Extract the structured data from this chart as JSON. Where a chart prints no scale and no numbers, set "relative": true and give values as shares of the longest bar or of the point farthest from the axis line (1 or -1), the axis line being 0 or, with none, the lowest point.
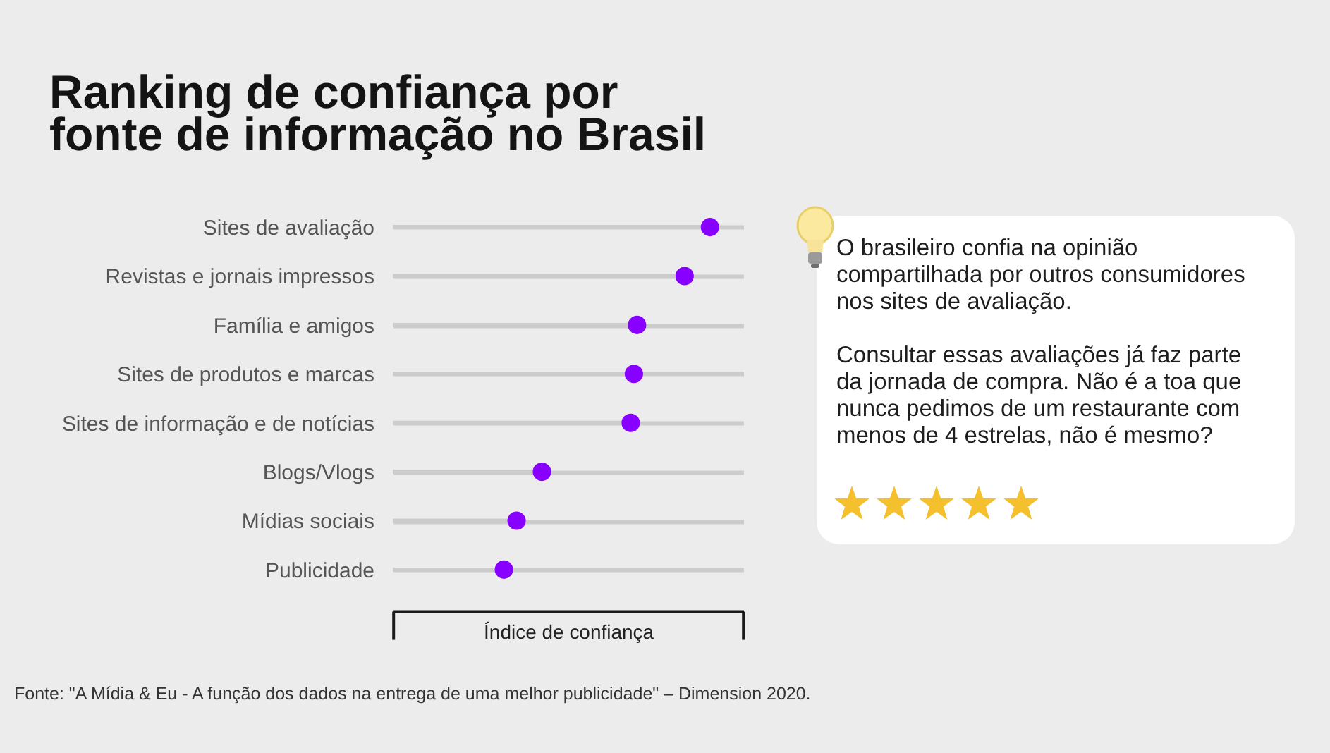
{
  "chart_data": [
    {
      "type": "lollipop",
      "orientation": "horizontal",
      "relative": true,
      "title": "Ranking de confiança por fonte de informação no Brasil",
      "xlabel": "Índice de confiança",
      "categories": [
        "Sites de avaliação",
        "Revistas e jornais impressos",
        "Família e amigos",
        "Sites de produtos e marcas",
        "Sites de informação e de notícias",
        "Blogs/Vlogs",
        "Mídias sociais",
        "Publicidade"
      ],
      "values": [
        1,
        0.92,
        0.77,
        0.76,
        0.75,
        0.47,
        0.39,
        0.35
      ],
      "color": "#8800ff",
      "grid": "y",
      "annotations": [
        "Fonte: \"A Mídia & Eu - A função dos dados na entrega de uma melhor publicidade\" – Dimension 2020."
      ]
    },
    {
      "type": "other",
      "annotations": [
        "O brasileiro confia na opinião compartilhada por outros consumidores nos sites de avaliação.",
        "Consultar essas avaliações já faz parte da jornada de compra. Não é a toa que nunca pedimos de um restaurante com menos de 4 estrelas, não é mesmo?"
      ]
    }
  ]
}
